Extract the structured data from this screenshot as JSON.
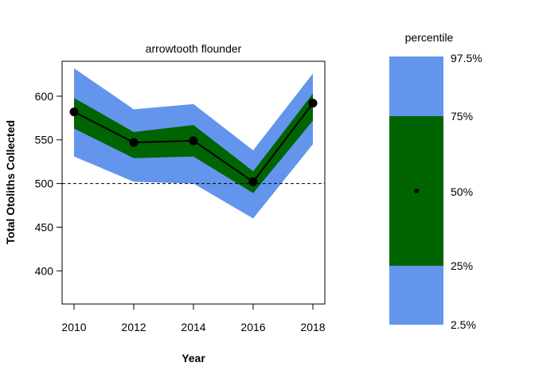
{
  "chart_data": {
    "type": "line",
    "title": "arrowtooth flounder",
    "xlabel": "Year",
    "ylabel": "Total Otoliths Collected",
    "x": [
      2010,
      2012,
      2014,
      2016,
      2018
    ],
    "x_ticks": [
      "2010",
      "2012",
      "2014",
      "2016",
      "2018"
    ],
    "y_ticks": [
      "400",
      "450",
      "500",
      "550",
      "600"
    ],
    "xlim": [
      2009.6,
      2018.4
    ],
    "ylim": [
      362,
      640
    ],
    "median": [
      582,
      547,
      549,
      502,
      592
    ],
    "bands": {
      "p2_5": [
        531,
        502,
        500,
        460,
        545
      ],
      "p25": [
        563,
        529,
        531,
        489,
        572
      ],
      "p75": [
        598,
        559,
        567,
        514,
        603
      ],
      "p97_5": [
        632,
        585,
        591,
        538,
        626
      ]
    },
    "reference_line": 500,
    "grid": false,
    "colors": {
      "outer_band": "#6495ED",
      "inner_band": "#006400",
      "median_line": "#000000",
      "reference_line": "#000000"
    }
  },
  "legend": {
    "title": "percentile",
    "labels": {
      "p97_5": "97.5%",
      "p75": "75%",
      "p50": "50%",
      "p25": "25%",
      "p2_5": "2.5%"
    }
  }
}
